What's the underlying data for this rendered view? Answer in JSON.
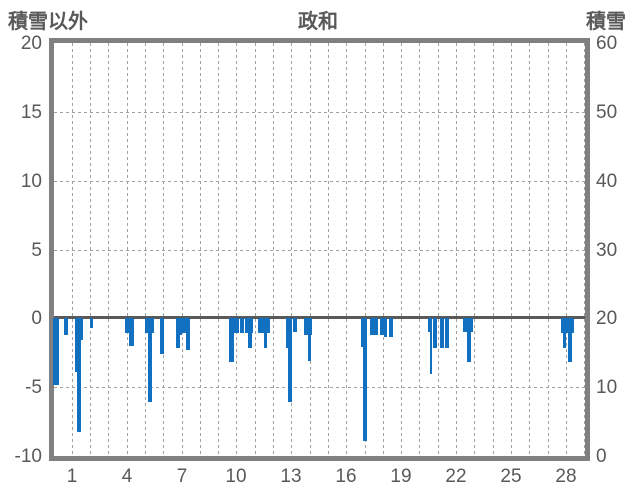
{
  "titles": {
    "left_axis": "積雪以外",
    "chart": "政和",
    "right_axis": "積雪"
  },
  "left_axis": {
    "label": "積雪以外",
    "tick_labels": [
      "20",
      "15",
      "10",
      "5",
      "0",
      "-5",
      "-10"
    ],
    "tick_values": [
      20,
      15,
      10,
      5,
      0,
      -5,
      -10
    ],
    "min": -10,
    "max": 20
  },
  "right_axis": {
    "label": "積雪",
    "tick_labels": [
      "60",
      "50",
      "40",
      "30",
      "20",
      "10",
      "0"
    ],
    "tick_values": [
      60,
      50,
      40,
      30,
      20,
      10,
      0
    ],
    "min": 0,
    "max": 60
  },
  "x_axis": {
    "tick_labels": [
      "1",
      "4",
      "7",
      "10",
      "13",
      "16",
      "19",
      "22",
      "25",
      "28"
    ],
    "tick_days": [
      1,
      4,
      7,
      10,
      13,
      16,
      19,
      22,
      25,
      28
    ],
    "gridline_days": 29
  },
  "colors": {
    "bar": "#1170c0",
    "axis_frame": "#808080",
    "gridline": "#a0a0a0",
    "zero_line": "#595959",
    "text": "#595959"
  },
  "chart_data": {
    "type": "bar",
    "title": "政和",
    "orientation": "bars hang downward from 0 on left axis",
    "grid": true,
    "legend": "none",
    "left_ylim": [
      -10,
      20
    ],
    "right_ylim": [
      0,
      60
    ],
    "series": [
      {
        "name": "積雪以外",
        "axis": "left",
        "color": "#1170c0",
        "points": [
          {
            "day": 0.15,
            "value": -4.9,
            "width": 0.3
          },
          {
            "day": 0.7,
            "value": -1.2,
            "width": 0.25
          },
          {
            "day": 1.31,
            "value": -3.9,
            "width": 0.22
          },
          {
            "day": 1.39,
            "value": -8.3,
            "width": 0.22
          },
          {
            "day": 1.5,
            "value": -1.6,
            "width": 0.19
          },
          {
            "day": 2.08,
            "value": -0.7,
            "width": 0.16
          },
          {
            "day": 4.01,
            "value": -1.1,
            "width": 0.22
          },
          {
            "day": 4.27,
            "value": -2.0,
            "width": 0.27
          },
          {
            "day": 5.14,
            "value": -1.1,
            "width": 0.22
          },
          {
            "day": 5.28,
            "value": -6.1,
            "width": 0.22
          },
          {
            "day": 5.42,
            "value": -1.1,
            "width": 0.16
          },
          {
            "day": 5.92,
            "value": -2.6,
            "width": 0.22
          },
          {
            "day": 6.78,
            "value": -2.2,
            "width": 0.22
          },
          {
            "day": 6.95,
            "value": -1.2,
            "width": 0.19
          },
          {
            "day": 7.14,
            "value": -1.1,
            "width": 0.22
          },
          {
            "day": 7.36,
            "value": -2.3,
            "width": 0.25
          },
          {
            "day": 9.75,
            "value": -3.2,
            "width": 0.27
          },
          {
            "day": 10.01,
            "value": -1.1,
            "width": 0.27
          },
          {
            "day": 10.32,
            "value": -1.1,
            "width": 0.22
          },
          {
            "day": 10.58,
            "value": -1.1,
            "width": 0.19
          },
          {
            "day": 10.72,
            "value": -2.2,
            "width": 0.22
          },
          {
            "day": 10.83,
            "value": -1.1,
            "width": 0.16
          },
          {
            "day": 11.52,
            "value": -1.1,
            "width": 0.64
          },
          {
            "day": 11.6,
            "value": -2.2,
            "width": 0.19
          },
          {
            "day": 12.82,
            "value": -2.2,
            "width": 0.22
          },
          {
            "day": 12.93,
            "value": -6.1,
            "width": 0.19
          },
          {
            "day": 13.19,
            "value": -1.0,
            "width": 0.22
          },
          {
            "day": 13.89,
            "value": -1.2,
            "width": 0.45
          },
          {
            "day": 14.01,
            "value": -3.1,
            "width": 0.18
          },
          {
            "day": 16.95,
            "value": -2.1,
            "width": 0.25
          },
          {
            "day": 17.03,
            "value": -8.9,
            "width": 0.19
          },
          {
            "day": 17.53,
            "value": -1.2,
            "width": 0.45
          },
          {
            "day": 17.94,
            "value": -1.2,
            "width": 0.19
          },
          {
            "day": 18.17,
            "value": -1.4,
            "width": 0.16
          },
          {
            "day": 18.47,
            "value": -1.4,
            "width": 0.22
          },
          {
            "day": 20.58,
            "value": -1.0,
            "width": 0.22
          },
          {
            "day": 20.64,
            "value": -4.1,
            "width": 0.16
          },
          {
            "day": 20.85,
            "value": -2.2,
            "width": 0.19
          },
          {
            "day": 21.22,
            "value": -2.2,
            "width": 0.19
          },
          {
            "day": 21.51,
            "value": -2.2,
            "width": 0.25
          },
          {
            "day": 22.67,
            "value": -1.0,
            "width": 0.55
          },
          {
            "day": 22.72,
            "value": -3.2,
            "width": 0.19
          },
          {
            "day": 27.93,
            "value": -2.2,
            "width": 0.16
          },
          {
            "day": 28.1,
            "value": -1.1,
            "width": 0.73
          },
          {
            "day": 28.24,
            "value": -3.2,
            "width": 0.22
          }
        ]
      }
    ]
  }
}
